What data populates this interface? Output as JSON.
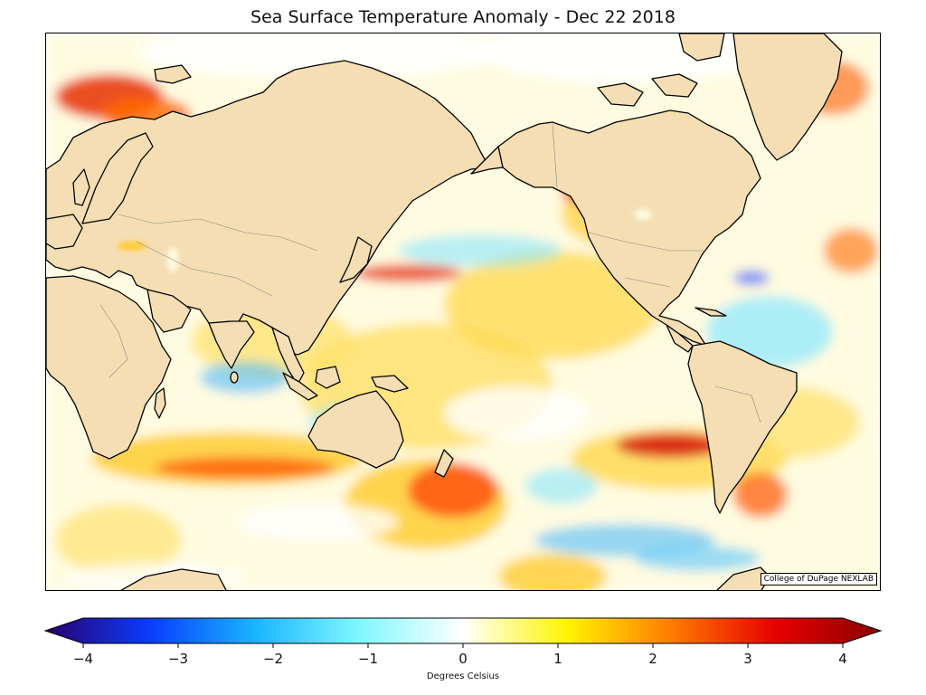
{
  "title": "Sea Surface Temperature Anomaly - Dec 22 2018",
  "credit": "College of DuPage NEXLAB",
  "colorbar": {
    "label": "Degrees Celsius",
    "min": -4,
    "max": 4,
    "ticks": [
      "−4",
      "−3",
      "−2",
      "−1",
      "0",
      "1",
      "2",
      "3",
      "4"
    ],
    "tick_values": [
      -4,
      -3,
      -2,
      -1,
      0,
      1,
      2,
      3,
      4
    ],
    "colors": [
      "#2a006b",
      "#0a3cff",
      "#19b4ff",
      "#7ff7ff",
      "#ffffff",
      "#fff400",
      "#ff7a00",
      "#e60000",
      "#8a0000"
    ]
  },
  "colors": {
    "land": "#f5deb3",
    "coast": "#000000",
    "border": "#888888"
  }
}
